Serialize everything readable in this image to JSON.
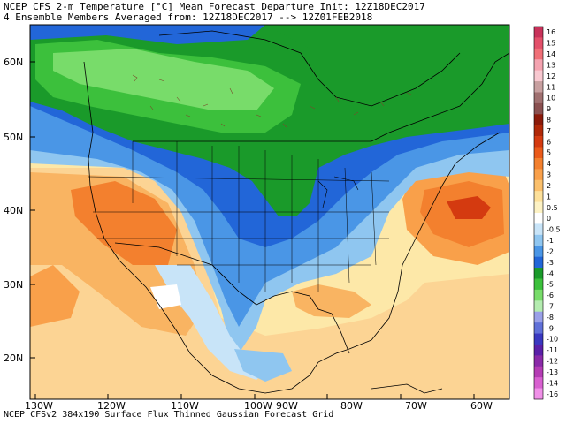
{
  "title_line1": "NCEP CFS 2-m Temperature [°C] Mean Forecast Departure Init: 12Z18DEC2017",
  "title_line2": "4 Ensemble Members Averaged from: 12Z18DEC2017 --> 12Z01FEB2018",
  "footer": "NCEP CFSv2 384x190 Surface Flux Thinned Gaussian Forecast Grid",
  "lat_labels": [
    "60N",
    "50N",
    "40N",
    "30N",
    "20N"
  ],
  "lon_labels": [
    "130W",
    "120W",
    "110W",
    "100W",
    "90W",
    "80W",
    "70W",
    "60W"
  ],
  "colorbar": {
    "labels": [
      "16",
      "15",
      "14",
      "13",
      "12",
      "11",
      "10",
      "9",
      "8",
      "7",
      "6",
      "5",
      "4",
      "3",
      "2",
      "1",
      "0.5",
      "0",
      "-0.5",
      "-1",
      "-2",
      "-3",
      "-4",
      "-5",
      "-6",
      "-7",
      "-8",
      "-9",
      "-10",
      "-11",
      "-12",
      "-13",
      "-14",
      "-16"
    ],
    "colors": [
      "#c8325a",
      "#e3506a",
      "#f07078",
      "#f4a3b0",
      "#f8c8d0",
      "#c8a0a0",
      "#a07070",
      "#8a5050",
      "#8b1a0a",
      "#b02808",
      "#d43a10",
      "#ea5a1a",
      "#f3802e",
      "#f9a04a",
      "#fbc06c",
      "#fde09a",
      "#fdf2c4",
      "#ffffff",
      "#c8e4f8",
      "#8fc6f0",
      "#4a96e6",
      "#2266d8",
      "#1a9a2a",
      "#3cc03c",
      "#78dc6a",
      "#b4ecb0",
      "#9aa0e8",
      "#6070d8",
      "#3a38c0",
      "#5a20a8",
      "#8a2aa8",
      "#b43cb4",
      "#d860d0",
      "#f090e8"
    ]
  },
  "colors": {
    "ocean_warm": "#fde8a8",
    "land_warm": "#fcd494",
    "warm_orange": "#f9a04a",
    "hot_orange": "#f3802e",
    "hot_red": "#d43a10",
    "cold_light_blue": "#8fc6f0",
    "cold_blue": "#4a96e6",
    "cold_deep_blue": "#2266d8",
    "green": "#1a9a2a",
    "green_light": "#3cc03c",
    "neutral": "#ffffff",
    "near_zero_pos": "#fdf2c4"
  }
}
